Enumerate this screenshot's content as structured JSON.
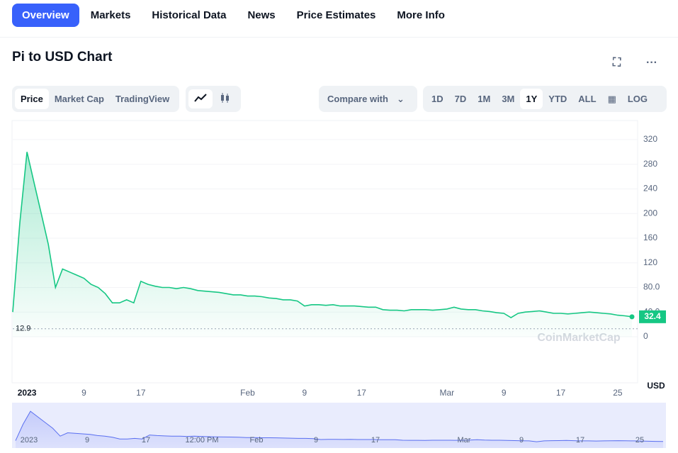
{
  "tabs": [
    "Overview",
    "Markets",
    "Historical Data",
    "News",
    "Price Estimates",
    "More Info"
  ],
  "title": "Pi to USD Chart",
  "view_buttons": [
    "Price",
    "Market Cap",
    "TradingView"
  ],
  "compare": "Compare with",
  "ranges": [
    "1D",
    "7D",
    "1M",
    "3M",
    "1Y",
    "YTD",
    "ALL"
  ],
  "log_button": "LOG",
  "chart_data": {
    "type": "line",
    "categories": [
      null,
      null,
      "2023",
      null,
      null,
      null,
      null,
      null,
      null,
      null,
      "9",
      null,
      null,
      null,
      null,
      null,
      null,
      null,
      "17",
      null,
      null,
      null,
      null,
      null,
      null,
      null,
      null,
      null,
      null,
      null,
      null,
      null,
      null,
      "Feb",
      null,
      null,
      null,
      null,
      null,
      null,
      null,
      "9",
      null,
      null,
      null,
      null,
      null,
      null,
      null,
      "17",
      null,
      null,
      null,
      null,
      null,
      null,
      null,
      null,
      null,
      null,
      null,
      "Mar",
      null,
      null,
      null,
      null,
      null,
      null,
      null,
      "9",
      null,
      null,
      null,
      null,
      null,
      null,
      null,
      "17",
      null,
      null,
      null,
      null,
      null,
      null,
      null,
      "25",
      null,
      null
    ],
    "series": [
      {
        "name": "Price",
        "color": "#16c784",
        "values": [
          40,
          185,
          300,
          250,
          200,
          150,
          80,
          110,
          105,
          100,
          95,
          85,
          80,
          70,
          55,
          55,
          60,
          55,
          90,
          85,
          82,
          80,
          80,
          78,
          80,
          78,
          75,
          74,
          73,
          72,
          70,
          68,
          68,
          66,
          66,
          65,
          63,
          62,
          60,
          60,
          58,
          50,
          52,
          52,
          51,
          52,
          50,
          50,
          50,
          49,
          48,
          48,
          44,
          43,
          43,
          42,
          44,
          44,
          44,
          43,
          44,
          45,
          48,
          45,
          44,
          44,
          42,
          41,
          39,
          38,
          31,
          38,
          40,
          41,
          42,
          40,
          38,
          38,
          37,
          38,
          39,
          40,
          39,
          38,
          37,
          35,
          34,
          32.4
        ]
      }
    ],
    "ylim": [
      0,
      351
    ],
    "yticks": [
      0,
      {
        "value": 40,
        "label": "40.0"
      },
      {
        "value": 80,
        "label": "80.0"
      },
      120,
      160,
      200,
      240,
      280,
      320
    ],
    "y_axis_label": "USD",
    "grid": true,
    "current_price": 32.4,
    "low_price": 12.9,
    "watermark": "CoinMarketCap"
  },
  "navigator": {
    "labels": [
      "2023",
      "9",
      "17",
      "12:00 PM",
      "Feb",
      "9",
      "17",
      "Mar",
      "9",
      "17",
      "25"
    ]
  }
}
